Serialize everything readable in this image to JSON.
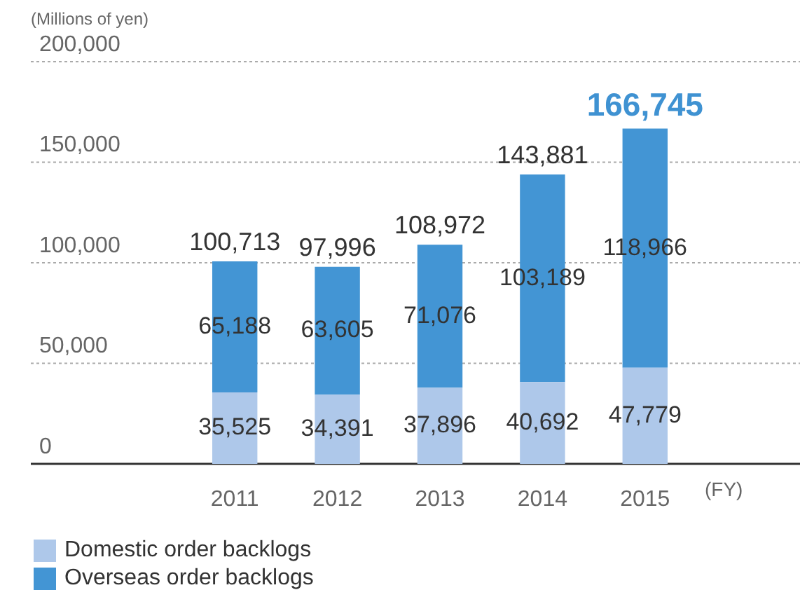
{
  "chart_data": {
    "type": "bar",
    "stacked": true,
    "ylabel": "(Millions of yen)",
    "xlabel": "(FY)",
    "categories": [
      "2011",
      "2012",
      "2013",
      "2014",
      "2015"
    ],
    "series": [
      {
        "name": "Domestic order backlogs",
        "color": "#aec8ea",
        "values": [
          35525,
          34391,
          37896,
          40692,
          47779
        ],
        "value_labels": [
          "35,525",
          "34,391",
          "37,896",
          "40,692",
          "47,779"
        ]
      },
      {
        "name": "Overseas order backlogs",
        "color": "#4395d4",
        "values": [
          65188,
          63605,
          71076,
          103189,
          118966
        ],
        "value_labels": [
          "65,188",
          "63,605",
          "71,076",
          "103,189",
          "118,966"
        ]
      }
    ],
    "totals": [
      "100,713",
      "97,996",
      "108,972",
      "143,881",
      "166,745"
    ],
    "ylim": [
      0,
      200000
    ],
    "yticks": [
      0,
      {
        "value": 50000,
        "label": "50,000"
      },
      {
        "value": 100000,
        "label": "100,000"
      },
      {
        "value": 150000,
        "label": "150,000"
      },
      {
        "value": 200000,
        "label": "200,000"
      }
    ],
    "grid": "y",
    "legend": "bottom"
  }
}
